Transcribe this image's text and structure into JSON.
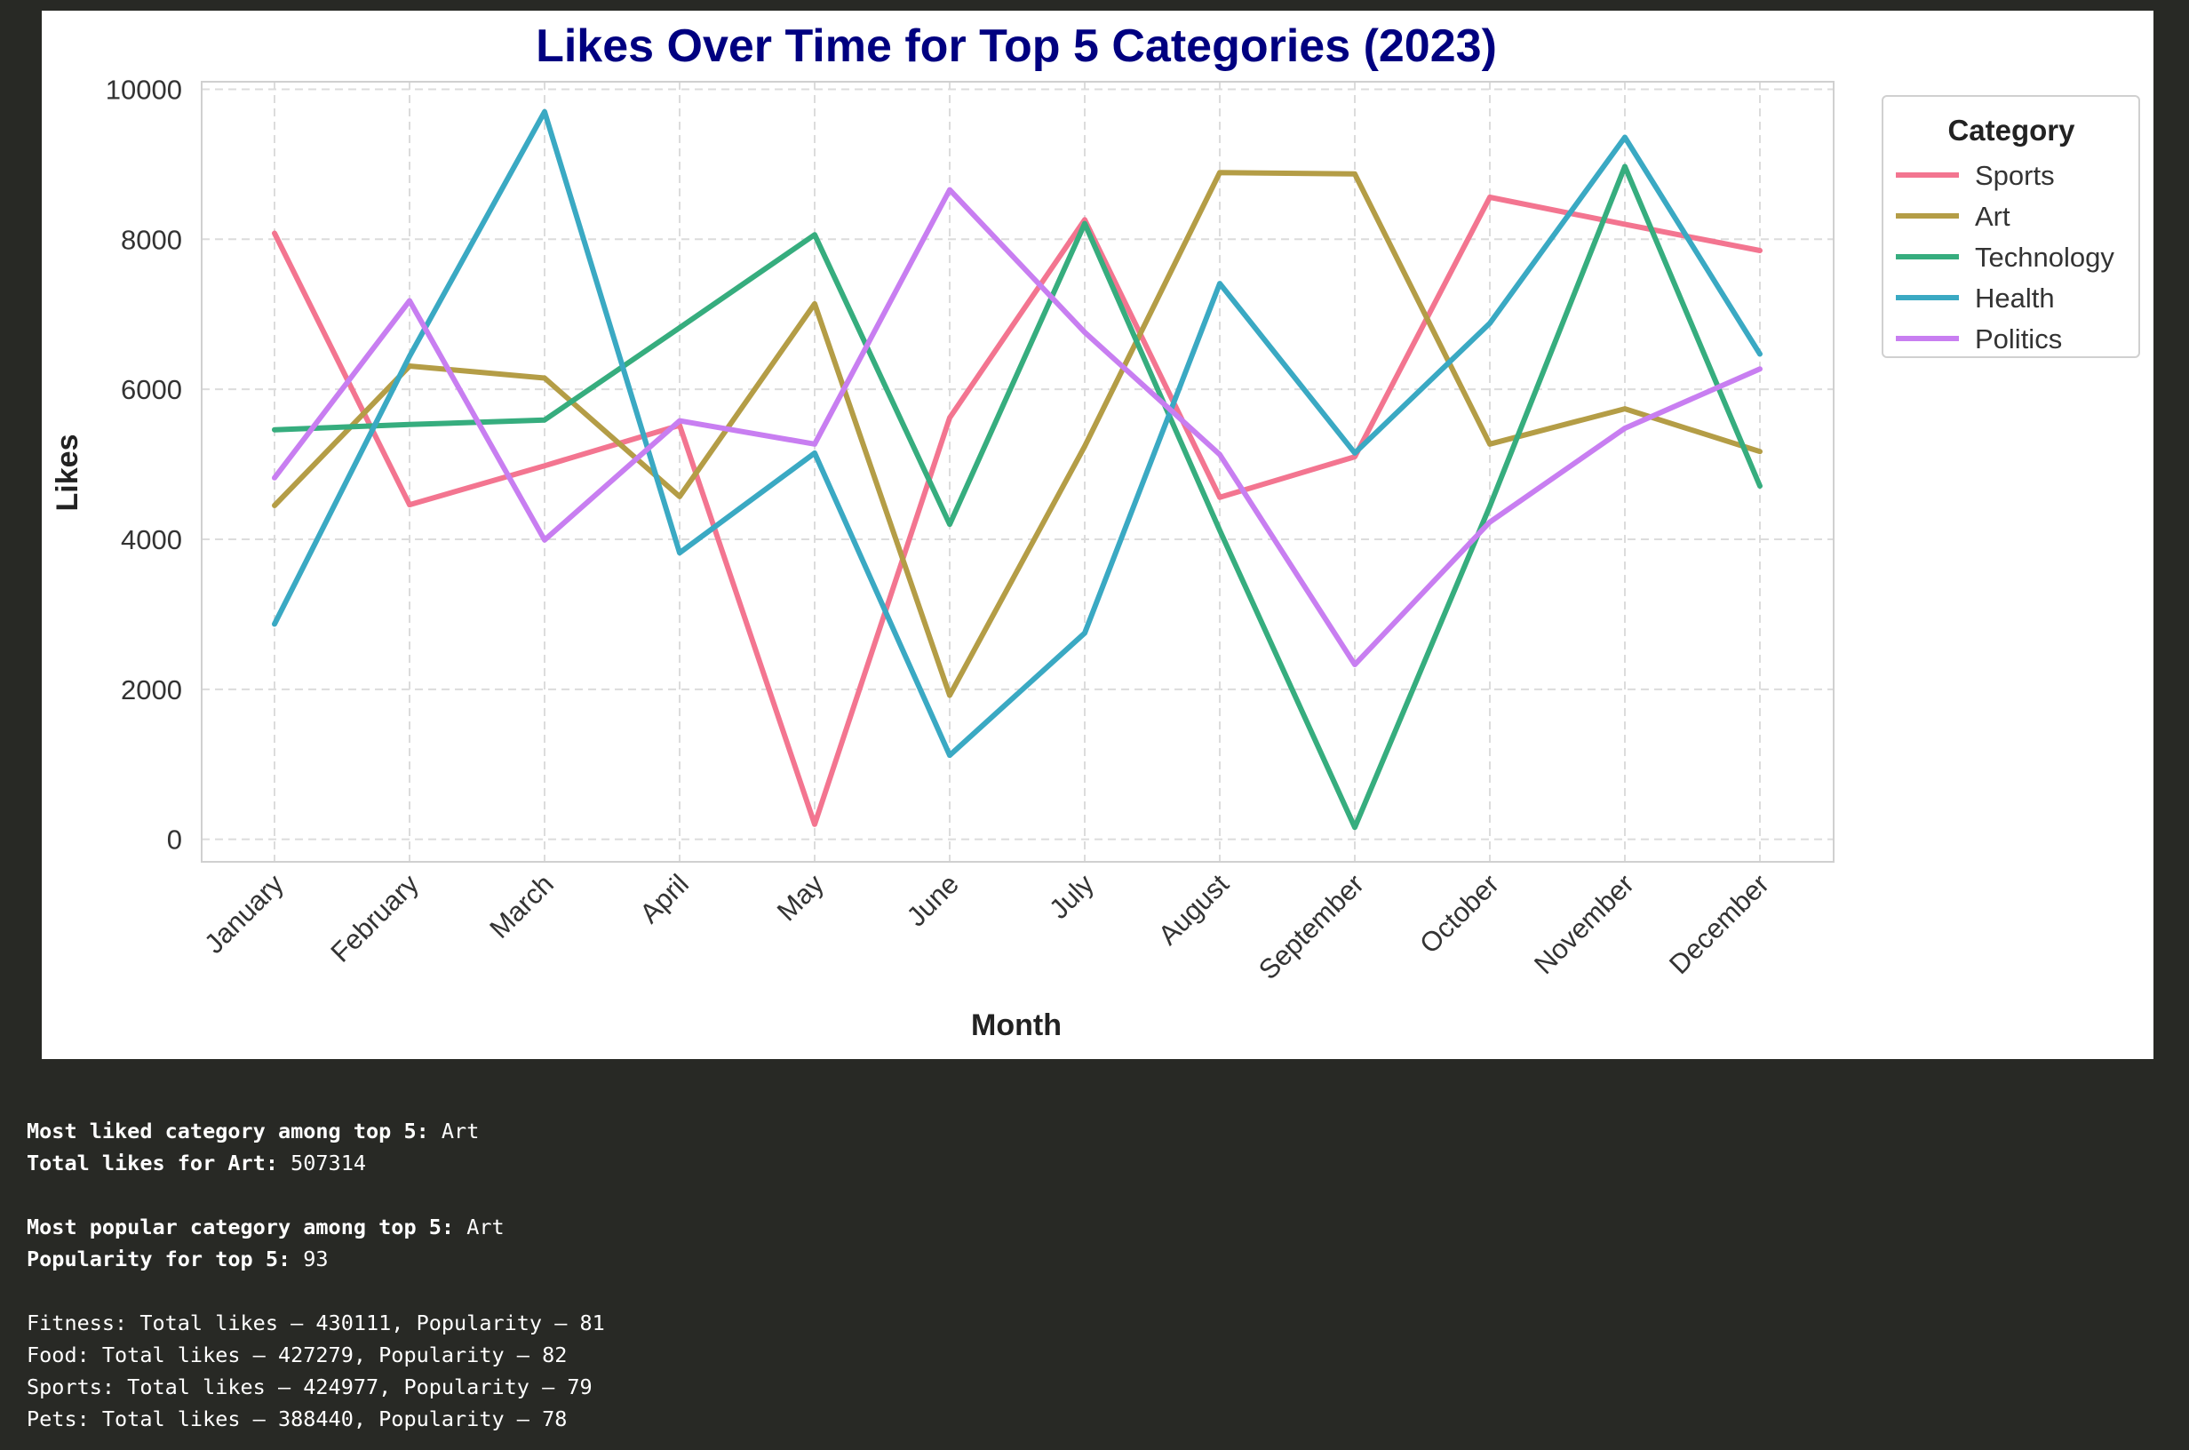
{
  "chart_data": {
    "type": "line",
    "title": "Likes Over Time for Top 5 Categories (2023)",
    "xlabel": "Month",
    "ylabel": "Likes",
    "categories": [
      "January",
      "February",
      "March",
      "April",
      "May",
      "June",
      "July",
      "August",
      "September",
      "October",
      "November",
      "December"
    ],
    "ylim": [
      -300,
      10100
    ],
    "yticks": [
      0,
      2000,
      4000,
      6000,
      8000,
      10000
    ],
    "grid": true,
    "legend": {
      "title": "Category",
      "position": "top-right"
    },
    "series": [
      {
        "name": "Sports",
        "color": "#f37590",
        "values": [
          8080,
          4460,
          4980,
          5520,
          200,
          5620,
          8260,
          4560,
          5100,
          8560,
          8200,
          7850
        ]
      },
      {
        "name": "Art",
        "color": "#b49d46",
        "values": [
          4450,
          6310,
          6150,
          4570,
          7140,
          1920,
          5240,
          8890,
          8870,
          5270,
          5740,
          5170
        ]
      },
      {
        "name": "Technology",
        "color": "#36ad7e",
        "values": [
          5460,
          5530,
          5590,
          6820,
          8060,
          4200,
          8210,
          4120,
          160,
          4440,
          8970,
          4710
        ]
      },
      {
        "name": "Health",
        "color": "#3aa9c3",
        "values": [
          2870,
          6440,
          9700,
          3820,
          5150,
          1120,
          2750,
          7410,
          5150,
          6880,
          9360,
          6470
        ]
      },
      {
        "name": "Politics",
        "color": "#c87ef1",
        "values": [
          4820,
          7180,
          3990,
          5580,
          5270,
          8660,
          6760,
          5130,
          2330,
          4230,
          5480,
          6270
        ]
      }
    ]
  },
  "output": {
    "lines": [
      {
        "label": "Most liked category among top 5:",
        "value": "Art"
      },
      {
        "label": "Total likes for Art:",
        "value": "507314"
      },
      null,
      {
        "label": "Most popular category among top 5:",
        "value": "Art"
      },
      {
        "label": "Popularity for top 5:",
        "value": "93"
      },
      null,
      {
        "text": "Fitness: Total likes – 430111, Popularity – 81"
      },
      {
        "text": "Food: Total likes – 427279, Popularity – 82"
      },
      {
        "text": "Sports: Total likes – 424977, Popularity – 79"
      },
      {
        "text": "Pets: Total likes – 388440, Popularity – 78"
      }
    ]
  }
}
